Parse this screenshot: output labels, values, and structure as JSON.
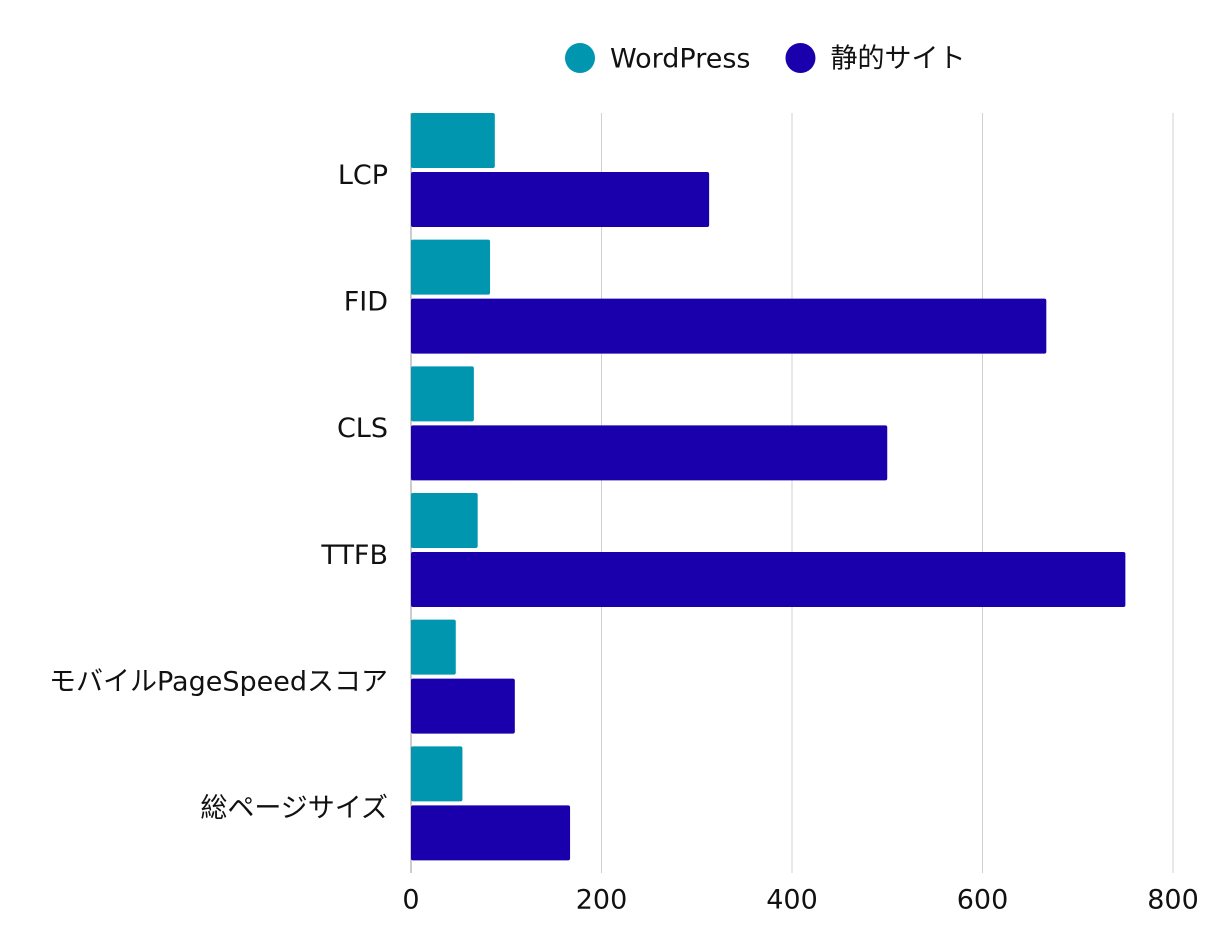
{
  "chart_data": {
    "type": "bar",
    "orientation": "horizontal",
    "legend": "top",
    "grid": true,
    "categories": [
      "LCP",
      "FID",
      "CLS",
      "TTFB",
      "モバイルPageSpeedスコア",
      "総ページサイズ"
    ],
    "series": [
      {
        "name": "WordPress",
        "color": "#0096b0",
        "values": [
          88,
          83,
          66,
          70,
          47,
          54
        ]
      },
      {
        "name": "静的サイト",
        "color": "#1a00ad",
        "values": [
          313,
          667,
          500,
          750,
          109,
          167
        ]
      }
    ],
    "xlim": [
      0,
      800
    ],
    "xticks": [
      0,
      200,
      400,
      600,
      800
    ]
  }
}
